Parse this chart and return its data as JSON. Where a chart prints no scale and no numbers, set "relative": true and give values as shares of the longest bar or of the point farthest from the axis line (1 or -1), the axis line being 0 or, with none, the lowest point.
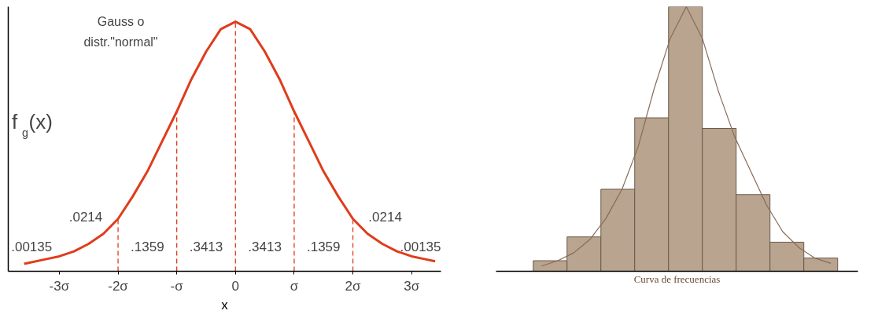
{
  "chart_data": [
    {
      "type": "line",
      "title": "Gauss o\ndistr.\"normal\"",
      "xlabel": "x",
      "ylabel": "f$_{g}$(x)",
      "relative": true,
      "tick_labels": "x",
      "xlim": [
        -3.87,
        3.5
      ],
      "xticks": [
        {
          "value": -3,
          "label": "-3σ"
        },
        {
          "value": -2,
          "label": "-2σ"
        },
        {
          "value": -1,
          "label": "-σ"
        },
        0,
        {
          "value": 1,
          "label": "σ"
        },
        {
          "value": 2,
          "label": "2σ"
        },
        {
          "value": 3,
          "label": "3σ"
        }
      ],
      "x": [
        -3.6,
        -3.2,
        -3,
        -2.75,
        -2.5,
        -2.25,
        -2,
        -1.75,
        -1.5,
        -1.25,
        -1,
        -0.75,
        -0.5,
        -0.25,
        0,
        0.25,
        0.5,
        0.75,
        1,
        1.25,
        1.5,
        1.75,
        2,
        2.25,
        2.5,
        2.75,
        3,
        3.2,
        3.4
      ],
      "series": [
        {
          "color": "#e03c1c",
          "values": [
            0.03,
            0.05,
            0.06,
            0.08,
            0.11,
            0.15,
            0.21,
            0.3,
            0.4,
            0.52,
            0.64,
            0.77,
            0.88,
            0.97,
            1,
            0.97,
            0.88,
            0.77,
            0.64,
            0.52,
            0.4,
            0.3,
            0.21,
            0.15,
            0.11,
            0.08,
            0.06,
            0.05,
            0.04
          ]
        }
      ],
      "ref_lines": [
        {
          "axis": "x",
          "value": -2,
          "color": "#e03c1c",
          "line_style": "dashed"
        },
        {
          "axis": "x",
          "value": -1,
          "color": "#e03c1c",
          "line_style": "dashed"
        },
        {
          "axis": "x",
          "value": 0,
          "color": "#e03c1c",
          "line_style": "dashed"
        },
        {
          "axis": "x",
          "value": 1,
          "color": "#e03c1c",
          "line_style": "dashed"
        },
        {
          "axis": "x",
          "value": 2,
          "color": "#e03c1c",
          "line_style": "dashed"
        }
      ],
      "annotations": [
        ".00135",
        ".0214",
        ".1359",
        ".3413",
        ".3413",
        ".1359",
        ".0214",
        ".00135"
      ]
    },
    {
      "type": "bar",
      "xlabel": "Curva de frecuencias",
      "relative": true,
      "tick_labels": false,
      "categories": [
        null,
        null,
        null,
        null,
        null,
        null,
        null,
        null,
        null
      ],
      "color": "#b8a48f",
      "values": [
        0.04,
        0.13,
        0.31,
        0.58,
        1,
        0.54,
        0.29,
        0.11,
        0.05
      ]
    },
    {
      "type": "line",
      "relative": true,
      "tick_labels": false,
      "categories": [
        null,
        null,
        null,
        null,
        null,
        null,
        null,
        null,
        null,
        null,
        null,
        null,
        null,
        null,
        null,
        null,
        null,
        null,
        null
      ],
      "series": [
        {
          "color": "#8a6a55",
          "values": [
            0.02,
            0.04,
            0.07,
            0.12,
            0.2,
            0.31,
            0.47,
            0.69,
            0.88,
            1,
            0.88,
            0.68,
            0.51,
            0.38,
            0.25,
            0.15,
            0.09,
            0.05,
            0.03
          ]
        }
      ]
    }
  ]
}
